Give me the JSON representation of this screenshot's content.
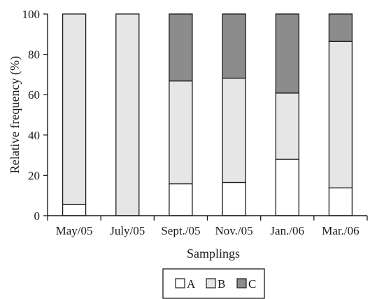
{
  "chart_data": {
    "type": "bar",
    "stacked": true,
    "categories": [
      "May/05",
      "July/05",
      "Sept./05",
      "Nov./05",
      "Jan./06",
      "Mar./06"
    ],
    "series": [
      {
        "name": "A",
        "color": "#ffffff",
        "values": [
          5.5,
          0,
          15.8,
          16.5,
          28.0,
          13.8
        ]
      },
      {
        "name": "B",
        "color": "#e6e6e6",
        "values": [
          94.5,
          100,
          51.0,
          51.7,
          32.8,
          72.6
        ]
      },
      {
        "name": "C",
        "color": "#8c8c8c",
        "values": [
          0,
          0,
          33.2,
          31.8,
          39.2,
          13.6
        ]
      }
    ],
    "xlabel": "Samplings",
    "ylabel": "Relative frequency (%)",
    "ylim": [
      0,
      100
    ],
    "yticks": [
      0,
      20,
      40,
      60,
      80,
      100
    ],
    "grid": false,
    "legend_position": "bottom-center"
  }
}
